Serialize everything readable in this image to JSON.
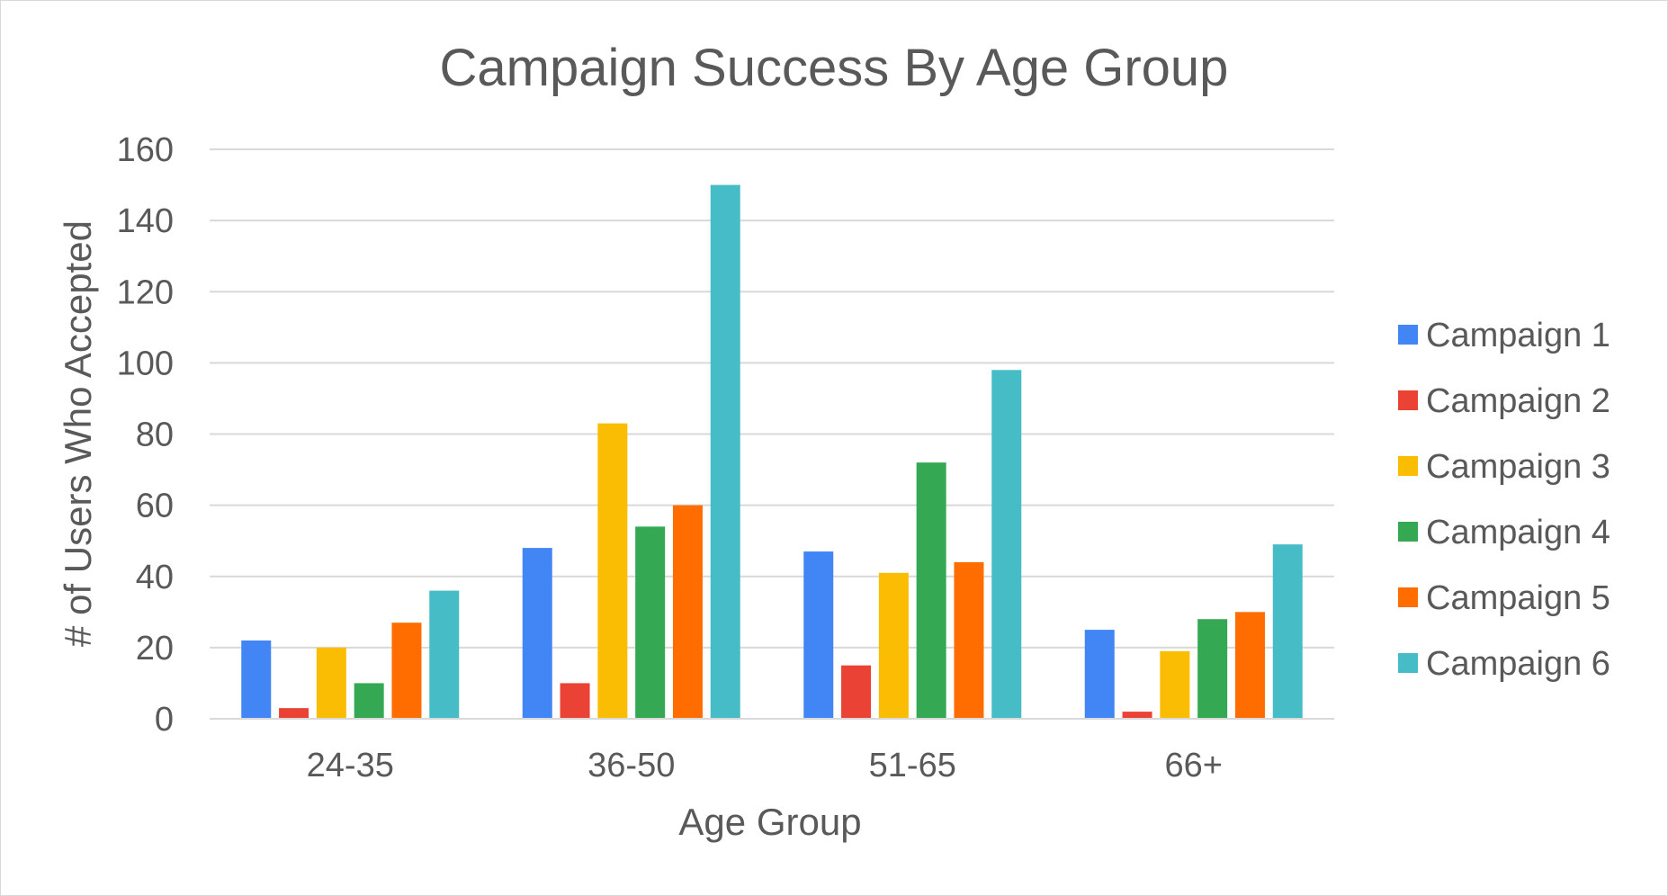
{
  "chart_data": {
    "type": "bar",
    "title": "Campaign Success By Age Group",
    "xlabel": "Age Group",
    "ylabel": "# of Users Who Accepted",
    "categories": [
      "24-35",
      "36-50",
      "51-65",
      "66+"
    ],
    "ylim": [
      0,
      160
    ],
    "yticks": [
      0,
      20,
      40,
      60,
      80,
      100,
      120,
      140,
      160
    ],
    "ytick_labels": [
      "0",
      "20",
      "40",
      "60",
      "80",
      "100",
      "120",
      "140",
      "160"
    ],
    "grid": true,
    "legend_position": "right",
    "series": [
      {
        "name": "Campaign 1",
        "color": "#4285f4",
        "values": [
          22,
          48,
          47,
          25
        ]
      },
      {
        "name": "Campaign 2",
        "color": "#ea4335",
        "values": [
          3,
          10,
          15,
          2
        ]
      },
      {
        "name": "Campaign 3",
        "color": "#fbbc04",
        "values": [
          20,
          83,
          41,
          19
        ]
      },
      {
        "name": "Campaign 4",
        "color": "#34a853",
        "values": [
          10,
          54,
          72,
          28
        ]
      },
      {
        "name": "Campaign 5",
        "color": "#ff6d01",
        "values": [
          27,
          60,
          44,
          30
        ]
      },
      {
        "name": "Campaign 6",
        "color": "#46bdc6",
        "values": [
          36,
          150,
          98,
          49
        ]
      }
    ]
  }
}
